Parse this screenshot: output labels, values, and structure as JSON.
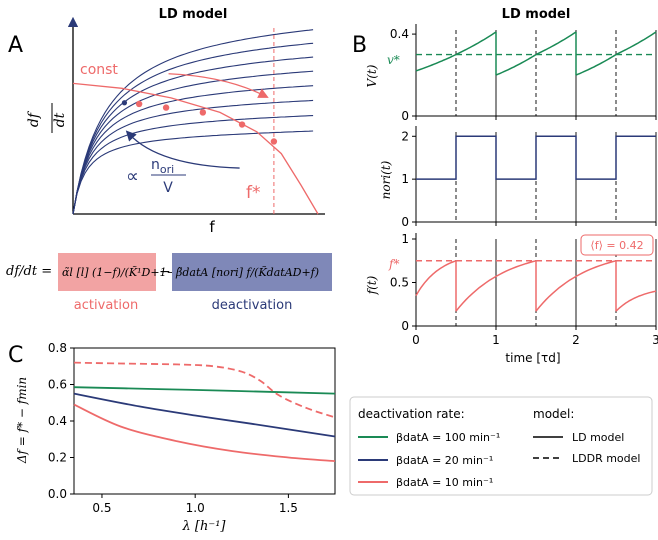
{
  "figure": {
    "panel_a": {
      "letter": "A",
      "title": "LD model",
      "xlabel": "f",
      "ylabel_num": "df",
      "ylabel_den": "dt",
      "const_label": "const",
      "fstar_label": "f*",
      "prop_symbol": "∝",
      "prop_num": "n",
      "prop_num_sub": "ori",
      "prop_den": "V",
      "equation_lhs": "df/dt =",
      "activation_term": "α̃l [l] (1−f)/(K̃¹D+1−f)",
      "minus": "−",
      "deactivation_term": "β̃datA [nori] f/(K̃datAD+f)",
      "activation_label": "activation",
      "deactivation_label": "deactivation"
    },
    "panel_b": {
      "letter": "B",
      "title": "LD model",
      "top_ylabel": "V(t)",
      "top_ref_label": "v*",
      "mid_ylabel": "nori(t)",
      "bot_ylabel": "f(t)",
      "bot_ref_label": "f*",
      "mean_annotation": "⟨f⟩ = 0.42",
      "xlabel": "time [τd]",
      "top_yticks": [
        "0",
        "0.4"
      ],
      "mid_yticks": [
        "0",
        "1",
        "2"
      ],
      "bot_yticks": [
        "0",
        "0.5",
        "1"
      ],
      "xticks": [
        "0",
        "1",
        "2",
        "3"
      ]
    },
    "panel_c": {
      "letter": "C",
      "ylabel": "Δf = f* − fmin",
      "xlabel": "λ [h⁻¹]",
      "yticks": [
        "0.0",
        "0.2",
        "0.4",
        "0.6",
        "0.8"
      ],
      "xticks": [
        "0.5",
        "1.0",
        "1.5"
      ]
    },
    "legend": {
      "rate_title": "deactivation rate:",
      "rate_items": [
        "βdatA = 100 min⁻¹",
        "βdatA = 20 min⁻¹",
        "βdatA = 10 min⁻¹"
      ],
      "model_title": "model:",
      "model_items": [
        "LD model",
        "LDDR model"
      ]
    },
    "colors": {
      "green": "#1a8a55",
      "navy": "#2b3a78",
      "salmon": "#ee6a6a",
      "activation_bg": "#f2a3a3",
      "deactivation_bg": "#7f88b8"
    }
  },
  "chart_data": [
    {
      "panel": "A",
      "type": "line",
      "title": "LD model",
      "xlabel": "f",
      "series": [
        {
          "name": "const",
          "color": "#ee6a6a",
          "x": [
            0,
            0.2,
            0.4,
            0.6,
            0.75,
            0.85,
            0.93,
            1.0
          ],
          "y": [
            0.54,
            0.52,
            0.48,
            0.42,
            0.34,
            0.25,
            0.12,
            0.0
          ]
        }
      ],
      "family_curves": 8,
      "f_star": 0.82
    },
    {
      "panel": "B-top",
      "type": "line",
      "ylabel": "V(t)",
      "xlim": [
        0,
        3
      ],
      "ylim": [
        0,
        0.42
      ],
      "ref_y": 0.3,
      "segments": [
        {
          "x": [
            0,
            0.5
          ],
          "y": [
            0.22,
            0.3
          ]
        },
        {
          "x": [
            0.5,
            1.0
          ],
          "y": [
            0.3,
            0.41
          ]
        },
        {
          "x": [
            1.0,
            1.5
          ],
          "y": [
            0.2,
            0.3
          ]
        },
        {
          "x": [
            1.5,
            2.0
          ],
          "y": [
            0.3,
            0.41
          ]
        },
        {
          "x": [
            2.0,
            2.5
          ],
          "y": [
            0.2,
            0.3
          ]
        },
        {
          "x": [
            2.5,
            3.0
          ],
          "y": [
            0.3,
            0.41
          ]
        }
      ]
    },
    {
      "panel": "B-mid",
      "type": "line",
      "ylabel": "nori(t)",
      "xlim": [
        0,
        3
      ],
      "ylim": [
        0,
        2.1
      ],
      "x": [
        0,
        0.5,
        0.5,
        1.0,
        1.0,
        1.5,
        1.5,
        2.0,
        2.0,
        2.5,
        2.5,
        3.0
      ],
      "y": [
        1,
        1,
        2,
        2,
        1,
        1,
        2,
        2,
        1,
        1,
        2,
        2
      ]
    },
    {
      "panel": "B-bot",
      "type": "line",
      "ylabel": "f(t)",
      "xlim": [
        0,
        3
      ],
      "ylim": [
        0,
        1
      ],
      "f_star": 0.75,
      "mean_f": 0.42,
      "segments": [
        {
          "x": [
            0,
            0.5
          ],
          "y": [
            0.35,
            0.75
          ]
        },
        {
          "x": [
            0.5,
            1.5
          ],
          "y": [
            0.17,
            0.75
          ]
        },
        {
          "x": [
            1.5,
            2.5
          ],
          "y": [
            0.17,
            0.75
          ]
        },
        {
          "x": [
            2.5,
            3.0
          ],
          "y": [
            0.17,
            0.4
          ]
        }
      ]
    },
    {
      "panel": "C",
      "type": "line",
      "xlabel": "λ [h⁻¹]",
      "ylabel": "Δf = f* − fmin",
      "xlim": [
        0.35,
        1.75
      ],
      "ylim": [
        0,
        0.8
      ],
      "series": [
        {
          "name": "βdatA = 100 min⁻¹",
          "color": "#1a8a55",
          "dash": false,
          "x": [
            0.35,
            0.8,
            1.2,
            1.75
          ],
          "y": [
            0.585,
            0.575,
            0.565,
            0.55
          ]
        },
        {
          "name": "βdatA = 20 min⁻¹",
          "color": "#2b3a78",
          "dash": false,
          "x": [
            0.35,
            0.7,
            1.0,
            1.3,
            1.75
          ],
          "y": [
            0.55,
            0.48,
            0.43,
            0.385,
            0.315
          ]
        },
        {
          "name": "βdatA = 10 min⁻¹",
          "color": "#ee6a6a",
          "dash": false,
          "x": [
            0.35,
            0.6,
            0.9,
            1.2,
            1.5,
            1.75
          ],
          "y": [
            0.49,
            0.37,
            0.29,
            0.235,
            0.2,
            0.18
          ]
        },
        {
          "name": "βdatA = 10 min⁻¹",
          "color": "#ee6a6a",
          "dash": true,
          "x": [
            0.35,
            0.6,
            0.9,
            1.1,
            1.25,
            1.35,
            1.45,
            1.6,
            1.75
          ],
          "y": [
            0.72,
            0.715,
            0.71,
            0.7,
            0.67,
            0.62,
            0.54,
            0.47,
            0.42
          ]
        }
      ]
    }
  ]
}
